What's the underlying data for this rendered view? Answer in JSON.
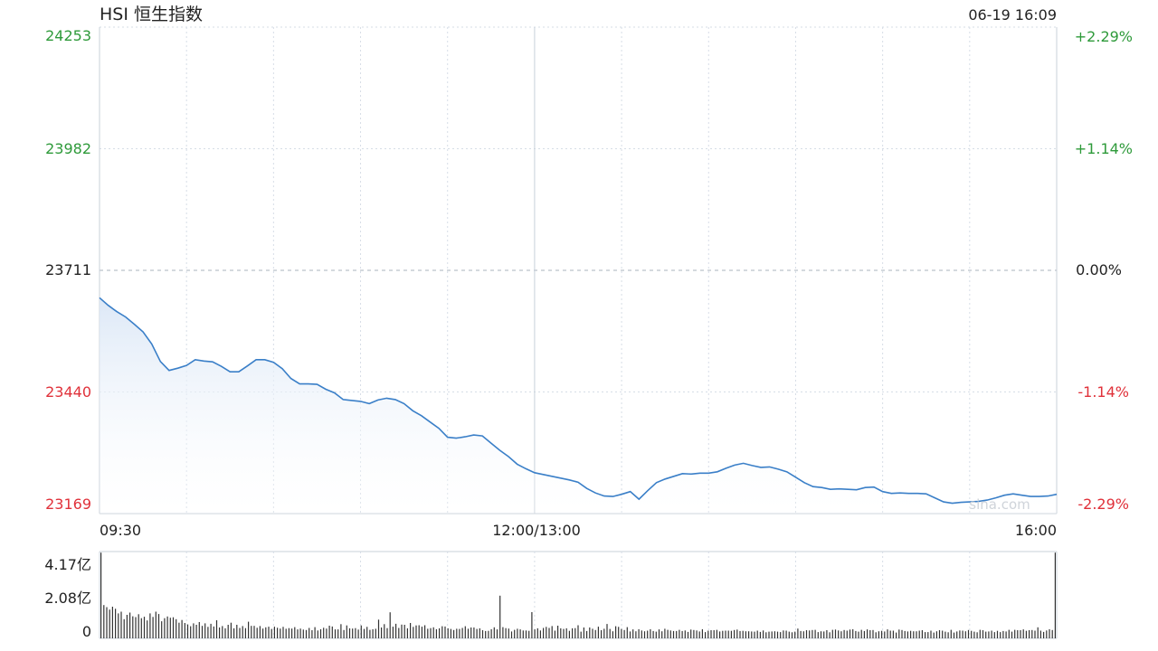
{
  "header": {
    "title": "HSI 恒生指数",
    "datetime": "06-19 16:09",
    "watermark": "sina.com"
  },
  "colors": {
    "up": "#2e9a3a",
    "down": "#e0313a",
    "neutral": "#222222",
    "line": "#3a7fc8",
    "fill_top": "#dbe7f6",
    "volume": "#333333",
    "grid": "#d6dde6"
  },
  "chart_data": [
    {
      "type": "area",
      "y_labels_left": [
        "24253",
        "23982",
        "23711",
        "23440",
        "23169"
      ],
      "y_labels_right": [
        "+2.29%",
        "+1.14%",
        "0.00%",
        "-1.14%",
        "-2.29%"
      ],
      "ylim": [
        23169,
        24253
      ],
      "reference": 23711,
      "x_labels": [
        "09:30",
        "12:00/13:00",
        "16:00"
      ],
      "x_range_minutes": [
        0,
        330
      ],
      "series": [
        {
          "points": [
            [
              0,
              23650
            ],
            [
              3,
              23633
            ],
            [
              6,
              23619
            ],
            [
              9,
              23607
            ],
            [
              12,
              23591
            ],
            [
              15,
              23574
            ],
            [
              18,
              23547
            ],
            [
              21,
              23508
            ],
            [
              24,
              23488
            ],
            [
              27,
              23493
            ],
            [
              30,
              23499
            ],
            [
              33,
              23512
            ],
            [
              36,
              23509
            ],
            [
              39,
              23507
            ],
            [
              42,
              23497
            ],
            [
              45,
              23485
            ],
            [
              48,
              23485
            ],
            [
              51,
              23498
            ],
            [
              54,
              23512
            ],
            [
              57,
              23512
            ],
            [
              60,
              23506
            ],
            [
              63,
              23492
            ],
            [
              66,
              23470
            ],
            [
              69,
              23458
            ],
            [
              72,
              23458
            ],
            [
              75,
              23457
            ],
            [
              78,
              23446
            ],
            [
              81,
              23438
            ],
            [
              84,
              23423
            ],
            [
              87,
              23421
            ],
            [
              90,
              23419
            ],
            [
              93,
              23414
            ],
            [
              96,
              23422
            ],
            [
              99,
              23426
            ],
            [
              102,
              23423
            ],
            [
              105,
              23414
            ],
            [
              108,
              23398
            ],
            [
              111,
              23387
            ],
            [
              114,
              23373
            ],
            [
              117,
              23359
            ],
            [
              120,
              23339
            ],
            [
              123,
              23337
            ],
            [
              126,
              23340
            ],
            [
              129,
              23344
            ],
            [
              132,
              23342
            ],
            [
              135,
              23326
            ],
            [
              138,
              23310
            ],
            [
              141,
              23296
            ],
            [
              144,
              23279
            ],
            [
              147,
              23269
            ],
            [
              150,
              23260
            ],
            [
              153,
              23256
            ],
            [
              156,
              23252
            ],
            [
              159,
              23248
            ],
            [
              162,
              23244
            ],
            [
              165,
              23239
            ],
            [
              168,
              23225
            ],
            [
              171,
              23215
            ],
            [
              174,
              23208
            ],
            [
              177,
              23207
            ],
            [
              180,
              23212
            ],
            [
              183,
              23218
            ],
            [
              186,
              23201
            ],
            [
              189,
              23220
            ],
            [
              192,
              23238
            ],
            [
              195,
              23246
            ],
            [
              198,
              23252
            ],
            [
              201,
              23258
            ],
            [
              204,
              23257
            ],
            [
              207,
              23259
            ],
            [
              210,
              23259
            ],
            [
              213,
              23262
            ],
            [
              216,
              23270
            ],
            [
              219,
              23277
            ],
            [
              222,
              23281
            ],
            [
              225,
              23276
            ],
            [
              228,
              23272
            ],
            [
              231,
              23273
            ],
            [
              234,
              23268
            ],
            [
              237,
              23262
            ],
            [
              240,
              23250
            ],
            [
              243,
              23238
            ],
            [
              246,
              23229
            ],
            [
              249,
              23227
            ],
            [
              252,
              23223
            ],
            [
              255,
              23224
            ],
            [
              258,
              23223
            ],
            [
              261,
              23222
            ],
            [
              264,
              23227
            ],
            [
              267,
              23228
            ],
            [
              270,
              23218
            ],
            [
              273,
              23214
            ],
            [
              276,
              23215
            ],
            [
              279,
              23214
            ],
            [
              282,
              23214
            ],
            [
              285,
              23213
            ],
            [
              288,
              23204
            ],
            [
              291,
              23195
            ],
            [
              294,
              23192
            ],
            [
              297,
              23194
            ],
            [
              300,
              23195
            ],
            [
              303,
              23196
            ],
            [
              306,
              23199
            ],
            [
              309,
              23204
            ],
            [
              312,
              23210
            ],
            [
              315,
              23213
            ],
            [
              318,
              23210
            ],
            [
              321,
              23207
            ],
            [
              324,
              23207
            ],
            [
              327,
              23208
            ],
            [
              330,
              23212
            ]
          ]
        }
      ]
    },
    {
      "type": "bar",
      "y_labels": [
        "4.17亿",
        "2.08亿",
        "0"
      ],
      "ylim": [
        0,
        4.17
      ],
      "unit": "亿",
      "values": [
        4.12,
        1.6,
        1.5,
        1.38,
        1.52,
        1.42,
        1.2,
        1.28,
        0.92,
        1.13,
        1.24,
        1.06,
        1.02,
        1.16,
        0.97,
        1.04,
        0.86,
        1.2,
        1.03,
        1.28,
        1.17,
        0.82,
        0.97,
        1.05,
        0.99,
        1.01,
        0.92,
        0.75,
        0.88,
        0.74,
        0.67,
        0.58,
        0.72,
        0.65,
        0.78,
        0.6,
        0.72,
        0.55,
        0.7,
        0.57,
        0.87,
        0.52,
        0.59,
        0.48,
        0.65,
        0.75,
        0.48,
        0.65,
        0.5,
        0.59,
        0.49,
        0.8,
        0.6,
        0.6,
        0.51,
        0.59,
        0.47,
        0.53,
        0.56,
        0.45,
        0.56,
        0.51,
        0.47,
        0.55,
        0.46,
        0.49,
        0.47,
        0.54,
        0.43,
        0.47,
        0.42,
        0.4,
        0.5,
        0.39,
        0.54,
        0.38,
        0.44,
        0.51,
        0.47,
        0.61,
        0.57,
        0.43,
        0.43,
        0.68,
        0.4,
        0.62,
        0.48,
        0.47,
        0.49,
        0.42,
        0.62,
        0.45,
        0.55,
        0.41,
        0.44,
        0.46,
        0.9,
        0.52,
        0.68,
        0.49,
        1.25,
        0.56,
        0.7,
        0.5,
        0.66,
        0.65,
        0.48,
        0.74,
        0.55,
        0.62,
        0.63,
        0.56,
        0.63,
        0.46,
        0.49,
        0.53,
        0.44,
        0.48,
        0.58,
        0.57,
        0.48,
        0.45,
        0.4,
        0.46,
        0.45,
        0.5,
        0.58,
        0.46,
        0.52,
        0.52,
        0.45,
        0.48,
        0.39,
        0.35,
        0.36,
        0.44,
        0.53,
        0.43,
        2.05,
        0.54,
        0.49,
        0.47,
        0.33,
        0.41,
        0.46,
        0.43,
        0.38,
        0.38,
        0.36,
        1.26,
        0.43,
        0.48,
        0.38,
        0.5,
        0.55,
        0.5,
        0.59,
        0.37,
        0.61,
        0.48,
        0.45,
        0.48,
        0.36,
        0.48,
        0.49,
        0.63,
        0.32,
        0.52,
        0.35,
        0.52,
        0.46,
        0.4,
        0.56,
        0.39,
        0.46,
        0.69,
        0.45,
        0.34,
        0.58,
        0.55,
        0.45,
        0.4,
        0.54,
        0.33,
        0.43,
        0.34,
        0.44,
        0.38,
        0.34,
        0.37,
        0.44,
        0.35,
        0.32,
        0.43,
        0.34,
        0.46,
        0.41,
        0.38,
        0.35,
        0.35,
        0.41,
        0.35,
        0.38,
        0.31,
        0.42,
        0.4,
        0.38,
        0.33,
        0.44,
        0.3,
        0.37,
        0.39,
        0.39,
        0.41,
        0.33,
        0.36,
        0.37,
        0.37,
        0.36,
        0.4,
        0.42,
        0.35,
        0.36,
        0.34,
        0.34,
        0.33,
        0.32,
        0.37,
        0.31,
        0.38,
        0.29,
        0.32,
        0.33,
        0.34,
        0.32,
        0.3,
        0.38,
        0.37,
        0.32,
        0.29,
        0.32,
        0.47,
        0.35,
        0.34,
        0.39,
        0.38,
        0.4,
        0.41,
        0.3,
        0.34,
        0.33,
        0.39,
        0.29,
        0.41,
        0.42,
        0.38,
        0.34,
        0.4,
        0.37,
        0.42,
        0.44,
        0.35,
        0.32,
        0.41,
        0.35,
        0.43,
        0.39,
        0.4,
        0.29,
        0.34,
        0.36,
        0.33,
        0.43,
        0.37,
        0.37,
        0.28,
        0.42,
        0.4,
        0.35,
        0.33,
        0.36,
        0.34,
        0.34,
        0.37,
        0.39,
        0.3,
        0.3,
        0.37,
        0.28,
        0.34,
        0.39,
        0.37,
        0.32,
        0.29,
        0.41,
        0.28,
        0.33,
        0.38,
        0.37,
        0.34,
        0.4,
        0.36,
        0.32,
        0.29,
        0.41,
        0.39,
        0.32,
        0.33,
        0.37,
        0.3,
        0.36,
        0.3,
        0.35,
        0.33,
        0.41,
        0.32,
        0.41,
        0.39,
        0.39,
        0.43,
        0.36,
        0.39,
        0.4,
        0.37,
        0.53,
        0.37,
        0.31,
        0.38,
        0.44,
        0.4,
        4.12
      ]
    }
  ]
}
